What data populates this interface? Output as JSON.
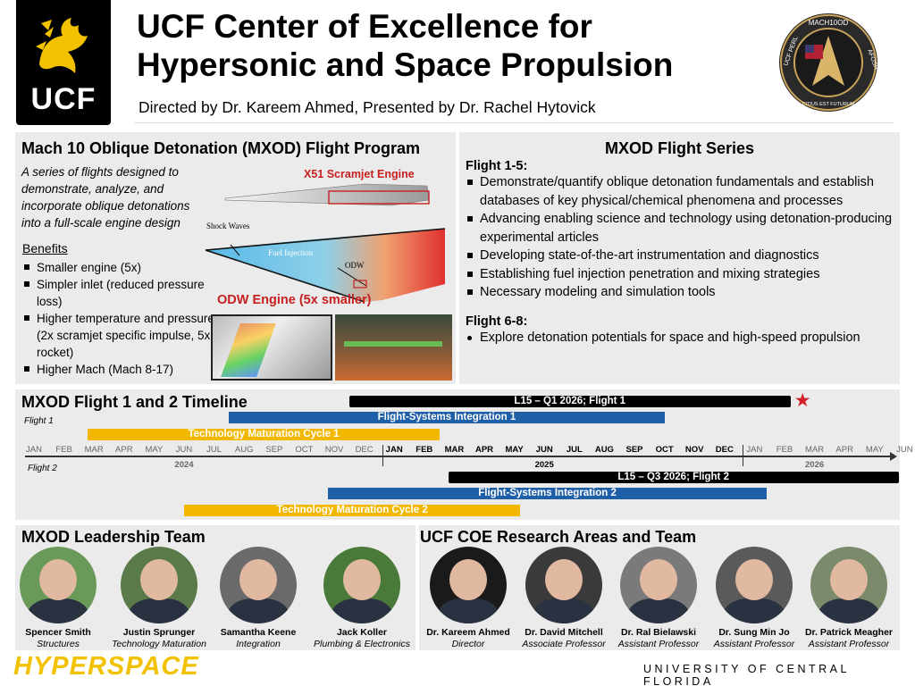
{
  "header": {
    "logo_text": "UCF",
    "title_line1": "UCF Center of Excellence for",
    "title_line2": "Hypersonic and Space Propulsion",
    "subtitle": "Directed by Dr. Kareem Ahmed, Presented by Dr. Rachel Hytovick",
    "badge": {
      "top": "MACH10OD",
      "left": "UCF PERL",
      "right": "AFOSR",
      "bottom": "CITIUS EST FUTURUM"
    }
  },
  "program": {
    "title": "Mach 10 Oblique Detonation (MXOD) Flight Program",
    "blurb": "A series of flights designed to demonstrate, analyze, and incorporate oblique detonations into a full-scale engine design",
    "benefits_title": "Benefits",
    "benefits": [
      "Smaller engine (5x)",
      "Simpler inlet (reduced pressure loss)",
      "Higher temperature and pressure (2x scramjet specific impulse, 5x rocket)",
      "Higher Mach (Mach 8-17)"
    ],
    "figure": {
      "x51_label": "X51 Scramjet Engine",
      "shock_label": "Shock Waves",
      "fuel_label": "Fuel Injection",
      "odw_label": "ODW",
      "odw_engine_label": "ODW Engine (5x smaller)"
    }
  },
  "series": {
    "title": "MXOD Flight Series",
    "group1_title": "Flight 1-5:",
    "group1": [
      "Demonstrate/quantify oblique detonation fundamentals and establish databases of key physical/chemical phenomena and processes",
      "Advancing enabling science and technology using detonation-producing experimental articles",
      "Developing state-of-the-art instrumentation and diagnostics",
      "Establishing fuel injection penetration and mixing strategies",
      "Necessary modeling and simulation tools"
    ],
    "group2_title": "Flight 6-8:",
    "group2": [
      "Explore detonation potentials for space and high-speed propulsion"
    ]
  },
  "timeline": {
    "title": "MXOD Flight 1 and 2 Timeline",
    "flight1_label": "Flight 1",
    "flight2_label": "Flight 2",
    "months": [
      "JAN",
      "FEB",
      "MAR",
      "APR",
      "MAY",
      "JUN",
      "JUL",
      "AUG",
      "SEP",
      "OCT",
      "NOV",
      "DEC",
      "JAN",
      "FEB",
      "MAR",
      "APR",
      "MAY",
      "JUN",
      "JUL",
      "AUG",
      "SEP",
      "OCT",
      "NOV",
      "DEC",
      "JAN",
      "FEB",
      "MAR",
      "APR",
      "MAY",
      "JUN"
    ],
    "years": [
      "2024",
      "2025",
      "2026"
    ],
    "bars": [
      {
        "label": "L15 – Q1 2026; Flight 1",
        "start": 10.5,
        "end": 25.2,
        "color": "#000000",
        "row": 0
      },
      {
        "label": "Flight-Systems Integration 1",
        "start": 6.5,
        "end": 21,
        "color": "#1f5fa8",
        "row": 1
      },
      {
        "label": "Technology Maturation Cycle 1",
        "start": 1.8,
        "end": 13.5,
        "color": "#f2b800",
        "row": 2
      },
      {
        "label": "L15 – Q3 2026; Flight 2",
        "start": 13.8,
        "end": 28.8,
        "color": "#000000",
        "row": 4
      },
      {
        "label": "Flight-Systems Integration 2",
        "start": 9.8,
        "end": 24.4,
        "color": "#1f5fa8",
        "row": 5
      },
      {
        "label": "Technology Maturation Cycle 2",
        "start": 5,
        "end": 16.2,
        "color": "#f2b800",
        "row": 6
      }
    ],
    "marker": {
      "type": "red-star",
      "color": "#d0202a",
      "at": 25.5
    }
  },
  "leadership": {
    "title": "MXOD Leadership Team",
    "people": [
      {
        "name": "Spencer Smith",
        "role": "Structures"
      },
      {
        "name": "Justin Sprunger",
        "role": "Technology Maturation"
      },
      {
        "name": "Samantha Keene",
        "role": "Integration"
      },
      {
        "name": "Jack Koller",
        "role": "Plumbing & Electronics"
      }
    ]
  },
  "research": {
    "title": "UCF COE Research Areas and Team",
    "people": [
      {
        "name": "Dr. Kareem Ahmed",
        "role": "Director"
      },
      {
        "name": "Dr. David Mitchell",
        "role": "Associate Professor"
      },
      {
        "name": "Dr. Ral Bielawski",
        "role": "Assistant Professor"
      },
      {
        "name": "Dr. Sung Min Jo",
        "role": "Assistant Professor"
      },
      {
        "name": "Dr. Patrick Meagher",
        "role": "Assistant Professor"
      }
    ]
  },
  "footer": {
    "brand": "HYPERSPACE",
    "university": "UNIVERSITY OF CENTRAL FLORIDA"
  }
}
